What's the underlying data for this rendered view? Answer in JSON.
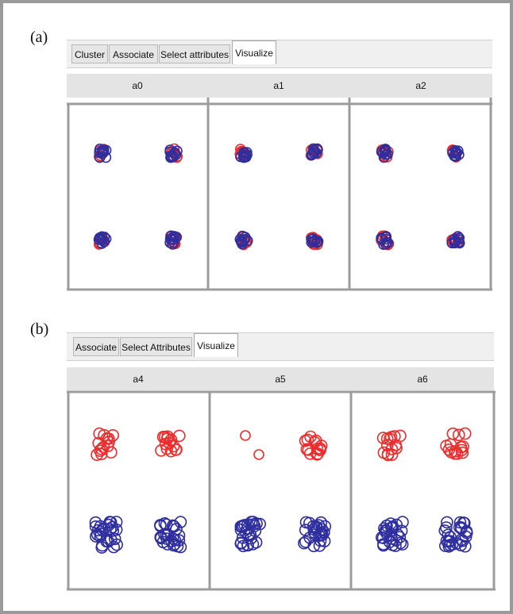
{
  "panels": [
    {
      "label": "(a)",
      "tabs": [
        "Cluster",
        "Associate",
        "Select attributes",
        "Visualize"
      ],
      "active_tab": "Visualize",
      "columns": [
        "a0",
        "a1",
        "a2"
      ]
    },
    {
      "label": "(b)",
      "tabs": [
        "Associate",
        "Select Attributes",
        "Visualize"
      ],
      "active_tab": "Visualize",
      "columns": [
        "a4",
        "a5",
        "a6"
      ]
    }
  ],
  "colors": {
    "red": "#ee2b2b",
    "blue": "#2e2e9e"
  }
}
